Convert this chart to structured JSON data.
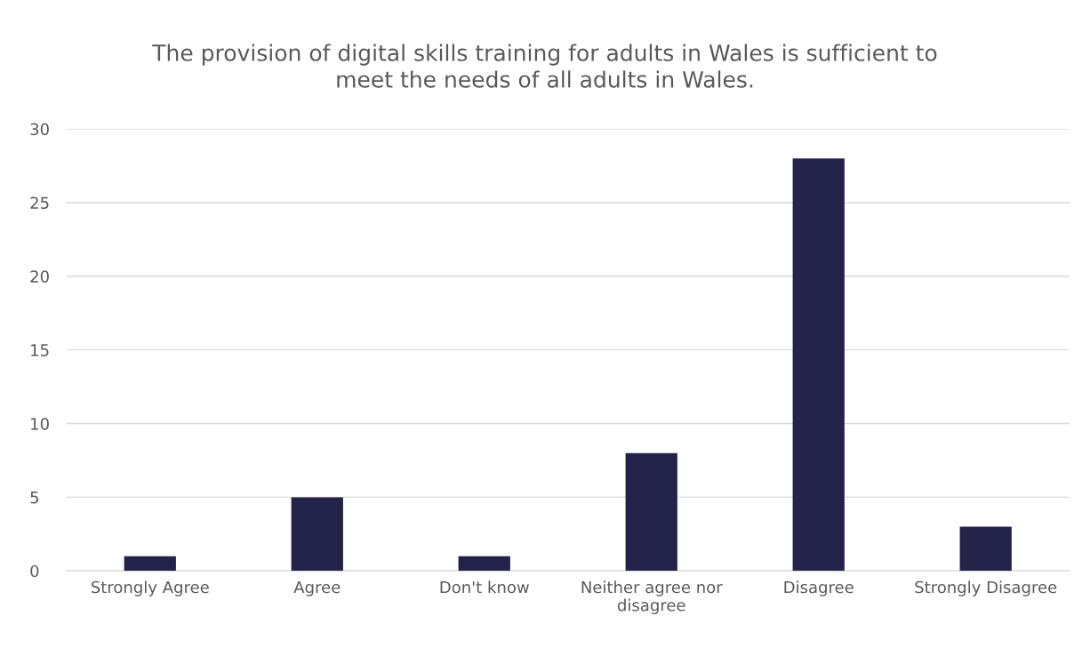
{
  "chart_data": {
    "type": "bar",
    "title": "The provision of digital skills training for adults in Wales is sufficient to\nmeet the needs of all adults in Wales.",
    "categories": [
      "Strongly Agree",
      "Agree",
      "Don't know",
      "Neither agree nor\ndisagree",
      "Disagree",
      "Strongly Disagree"
    ],
    "values": [
      1,
      5,
      1,
      8,
      28,
      3
    ],
    "color": "#232249",
    "ylim": [
      0,
      30
    ],
    "yticks": [
      0,
      5,
      10,
      15,
      20,
      25,
      30
    ],
    "grid": "y",
    "legend": false
  }
}
